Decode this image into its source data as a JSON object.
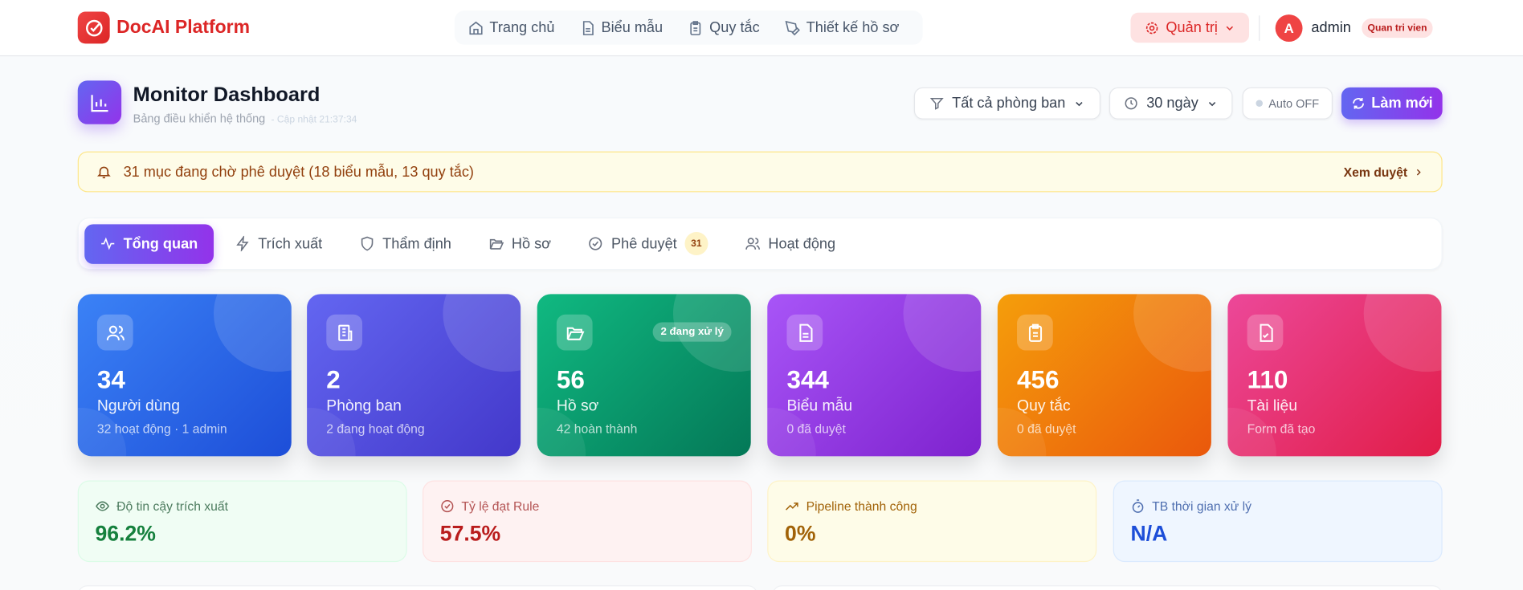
{
  "header": {
    "brand": "DocAI Platform",
    "nav": [
      {
        "label": "Trang chủ",
        "icon": "home-icon"
      },
      {
        "label": "Biểu mẫu",
        "icon": "file-text-icon"
      },
      {
        "label": "Quy tắc",
        "icon": "clipboard-icon"
      },
      {
        "label": "Thiết kế hồ sơ",
        "icon": "pen-tool-icon"
      }
    ],
    "admin_menu": "Quản trị",
    "user": {
      "initial": "A",
      "name": "admin",
      "role": "Quan tri vien"
    }
  },
  "page": {
    "title": "Monitor Dashboard",
    "subtitle": "Bảng điều khiển hệ thống",
    "updated": "- Cập nhật 21:37:34"
  },
  "controls": {
    "department": "Tất cả phòng ban",
    "period": "30 ngày",
    "auto": "Auto OFF",
    "refresh": "Làm mới"
  },
  "alert": {
    "text": "31 mục đang chờ phê duyệt (18 biểu mẫu, 13 quy tắc)",
    "link": "Xem duyệt"
  },
  "tabs": [
    {
      "label": "Tổng quan",
      "active": true
    },
    {
      "label": "Trích xuất"
    },
    {
      "label": "Thẩm định"
    },
    {
      "label": "Hồ sơ"
    },
    {
      "label": "Phê duyệt",
      "count": "31"
    },
    {
      "label": "Hoạt động"
    }
  ],
  "stats": [
    {
      "value": "34",
      "label": "Người dùng",
      "sub": "32 hoạt động · 1 admin",
      "icon": "users-icon",
      "colors": [
        "#3b82f6",
        "#1d4ed8"
      ]
    },
    {
      "value": "2",
      "label": "Phòng ban",
      "sub": "2 đang hoạt động",
      "icon": "building-icon",
      "colors": [
        "#6366f1",
        "#4338ca"
      ]
    },
    {
      "value": "56",
      "label": "Hồ sơ",
      "sub": "42 hoàn thành",
      "badge": "2 đang xử lý",
      "icon": "folder-open-icon",
      "colors": [
        "#10b981",
        "#047857"
      ]
    },
    {
      "value": "344",
      "label": "Biểu mẫu",
      "sub": "0 đã duyệt",
      "icon": "file-text-icon",
      "colors": [
        "#a855f7",
        "#7e22ce"
      ]
    },
    {
      "value": "456",
      "label": "Quy tắc",
      "sub": "0 đã duyệt",
      "icon": "clipboard-list-icon",
      "colors": [
        "#f59e0b",
        "#ea580c"
      ]
    },
    {
      "value": "110",
      "label": "Tài liệu",
      "sub": "Form đã tạo",
      "icon": "file-check-icon",
      "colors": [
        "#ec4899",
        "#e11d48"
      ]
    }
  ],
  "metrics": [
    {
      "label": "Độ tin cậy trích xuất",
      "value": "96.2%",
      "icon": "eye-icon",
      "bg": "#f0fdf4",
      "border": "#dcfce7",
      "label_color": "#4d7c5f",
      "value_color": "#15803d"
    },
    {
      "label": "Tỷ lệ đạt Rule",
      "value": "57.5%",
      "icon": "check-circle-icon",
      "bg": "#fef2f2",
      "border": "#fee2e2",
      "label_color": "#b45454",
      "value_color": "#b91c1c"
    },
    {
      "label": "Pipeline thành công",
      "value": "0%",
      "icon": "trending-up-icon",
      "bg": "#fefce8",
      "border": "#fef3c7",
      "label_color": "#a16207",
      "value_color": "#a16207"
    },
    {
      "label": "TB thời gian xử lý",
      "value": "N/A",
      "icon": "timer-icon",
      "bg": "#eff6ff",
      "border": "#dbeafe",
      "label_color": "#4f6fb0",
      "value_color": "#1d4ed8"
    }
  ]
}
